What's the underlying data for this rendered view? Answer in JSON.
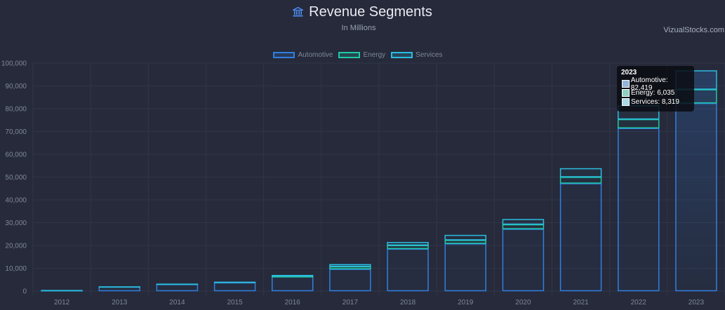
{
  "header": {
    "title": "Revenue Segments",
    "subtitle": "In Millions",
    "watermark": "VizualStocks.com"
  },
  "icons": {
    "title_icon": "bank-icon"
  },
  "colors": {
    "background": "#262a3a",
    "automotive": "#2f7fe0",
    "energy": "#1fc8a8",
    "services": "#2bbce0",
    "grid": "#30354a",
    "tick_label": "#7f889b"
  },
  "tooltip": {
    "title": "2023",
    "rows": [
      {
        "label": "Automotive: 82,419",
        "swatch": "#93b5dc"
      },
      {
        "label": "Energy: 6,035",
        "swatch": "#8fd0c2"
      },
      {
        "label": "Services: 8,319",
        "swatch": "#a7dbe6"
      }
    ]
  },
  "chart_data": {
    "type": "bar",
    "stacked": true,
    "title": "Revenue Segments",
    "subtitle": "In Millions",
    "categories": [
      "2012",
      "2013",
      "2014",
      "2015",
      "2016",
      "2017",
      "2018",
      "2019",
      "2020",
      "2021",
      "2022",
      "2023"
    ],
    "series": [
      {
        "name": "Automotive",
        "color": "#2f7fe0",
        "values": [
          385,
          1921,
          3007,
          3741,
          6351,
          9641,
          18515,
          20821,
          27236,
          47232,
          71462,
          82419
        ]
      },
      {
        "name": "Energy",
        "color": "#1fc8a8",
        "values": [
          0,
          0,
          0,
          0,
          181,
          1116,
          1555,
          1531,
          1994,
          2789,
          3909,
          6035
        ]
      },
      {
        "name": "Services",
        "color": "#2bbce0",
        "values": [
          29,
          92,
          191,
          305,
          468,
          1001,
          1391,
          2226,
          2306,
          3802,
          6091,
          8319
        ]
      }
    ],
    "ylim": [
      0,
      100000
    ],
    "yticks": [
      "0",
      "10,000",
      "20,000",
      "30,000",
      "40,000",
      "50,000",
      "60,000",
      "70,000",
      "80,000",
      "90,000",
      "100,000"
    ],
    "legend": "top-center",
    "grid": true,
    "xlabel": "",
    "ylabel": ""
  }
}
